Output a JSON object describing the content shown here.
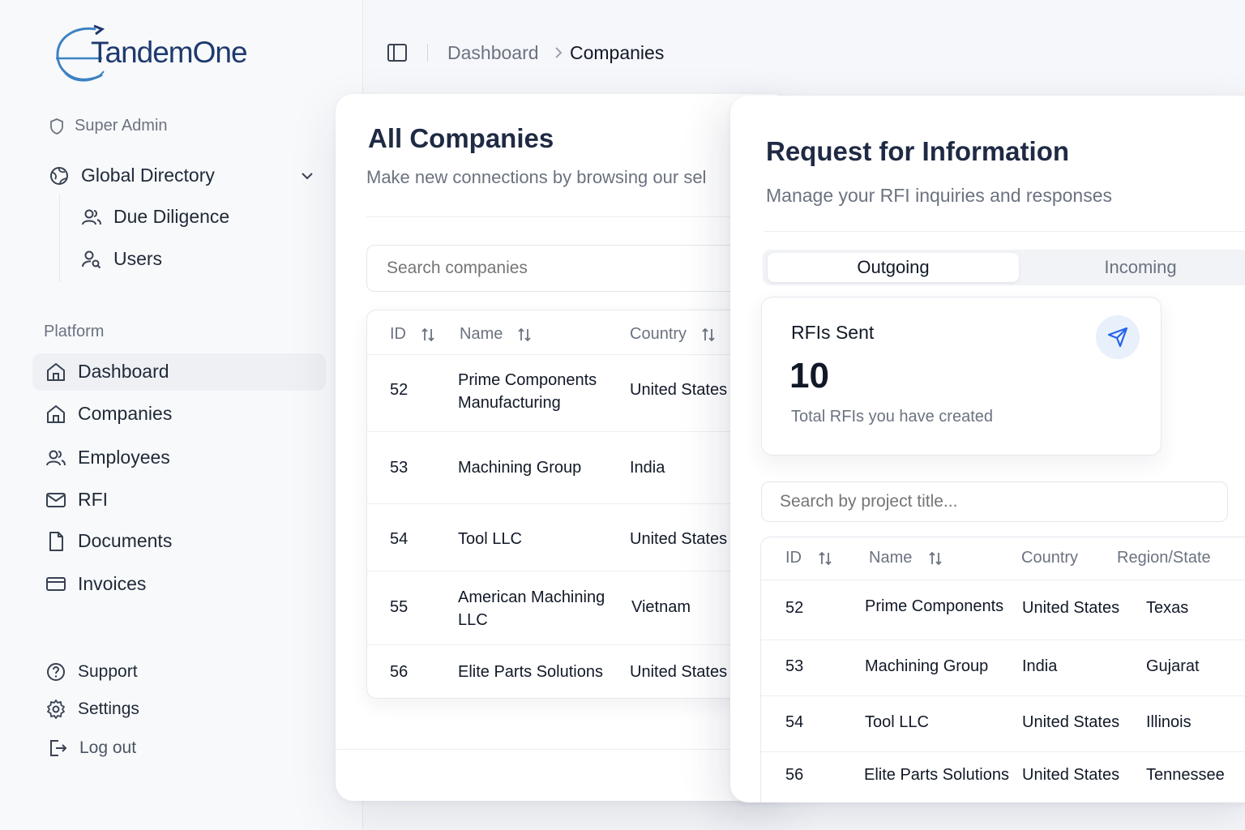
{
  "brand": {
    "name": "TandemOne"
  },
  "sidebar": {
    "role": "Super Admin",
    "directory": {
      "label": "Global Directory",
      "children": [
        "Due Diligence",
        "Users"
      ]
    },
    "section_label": "Platform",
    "items": [
      {
        "label": "Dashboard",
        "icon": "home-icon"
      },
      {
        "label": "Companies",
        "icon": "building-icon"
      },
      {
        "label": "Employees",
        "icon": "users-icon"
      },
      {
        "label": "RFI",
        "icon": "mail-icon"
      },
      {
        "label": "Documents",
        "icon": "file-icon"
      },
      {
        "label": "Invoices",
        "icon": "credit-card-icon"
      }
    ],
    "footer": [
      {
        "label": "Support",
        "icon": "help-circle-icon"
      },
      {
        "label": "Settings",
        "icon": "gear-icon"
      },
      {
        "label": "Log out",
        "icon": "logout-icon"
      }
    ]
  },
  "breadcrumb": {
    "parent": "Dashboard",
    "current": "Companies"
  },
  "companies": {
    "title": "All Companies",
    "subtitle": "Make new connections by browsing our sel",
    "search_placeholder": "Search companies",
    "columns": [
      "ID",
      "Name",
      "Country"
    ],
    "rows": [
      {
        "id": "52",
        "name": "Prime Components Manufacturing",
        "country": "United States"
      },
      {
        "id": "53",
        "name": "Machining Group",
        "country": "India"
      },
      {
        "id": "54",
        "name": "Tool LLC",
        "country": "United States"
      },
      {
        "id": "55",
        "name": "American Machining LLC",
        "country": "Vietnam"
      },
      {
        "id": "56",
        "name": "Elite Parts Solutions",
        "country": "United States"
      }
    ]
  },
  "rfi": {
    "title": "Request for Information",
    "subtitle": "Manage your RFI inquiries and responses",
    "tabs": [
      "Outgoing",
      "Incoming"
    ],
    "active_tab": "Outgoing",
    "stat": {
      "label": "RFIs Sent",
      "value": "10",
      "description": "Total RFIs you have created"
    },
    "search_placeholder": "Search by project title...",
    "columns": [
      "ID",
      "Name",
      "Country",
      "Region/State"
    ],
    "rows": [
      {
        "id": "52",
        "name": "Prime Components",
        "country": "United States",
        "region": "Texas"
      },
      {
        "id": "53",
        "name": "Machining Group",
        "country": "India",
        "region": "Gujarat"
      },
      {
        "id": "54",
        "name": "Tool LLC",
        "country": "United States",
        "region": "Illinois"
      },
      {
        "id": "56",
        "name": "Elite Parts Solutions",
        "country": "United States",
        "region": "Tennessee"
      }
    ]
  },
  "colors": {
    "accent": "#2563eb",
    "brand": "#1e3a6e",
    "brand_light": "#3b82c4"
  }
}
